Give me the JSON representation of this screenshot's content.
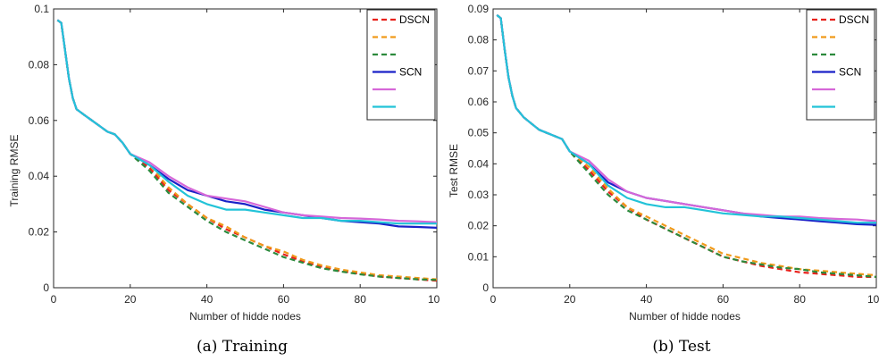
{
  "chart_data": [
    {
      "type": "line",
      "caption": "(a)  Training",
      "xlabel": "Number of hidde nodes",
      "ylabel": "Training RMSE",
      "xlim": [
        0,
        100
      ],
      "ylim": [
        0,
        0.1
      ],
      "xticks": [
        "0",
        "20",
        "40",
        "60",
        "80",
        "100"
      ],
      "yticks": [
        "0",
        "0.02",
        "0.04",
        "0.06",
        "0.08",
        "0.1"
      ],
      "grid": false,
      "legend_position": "top-right",
      "series": [
        {
          "name": "DSCN",
          "color": "#e8211b",
          "dashed": true,
          "x": [
            1,
            2,
            3,
            4,
            5,
            6,
            8,
            10,
            12,
            14,
            16,
            18,
            20,
            25,
            30,
            35,
            40,
            45,
            50,
            55,
            60,
            65,
            70,
            75,
            80,
            85,
            90,
            95,
            100
          ],
          "y": [
            0.096,
            0.095,
            0.085,
            0.075,
            0.068,
            0.064,
            0.062,
            0.06,
            0.058,
            0.056,
            0.055,
            0.052,
            0.048,
            0.043,
            0.035,
            0.03,
            0.025,
            0.021,
            0.018,
            0.015,
            0.012,
            0.0095,
            0.0075,
            0.006,
            0.005,
            0.004,
            0.0035,
            0.003,
            0.0025
          ]
        },
        {
          "name": "",
          "color": "#f09a1a",
          "dashed": true,
          "x": [
            1,
            2,
            3,
            4,
            5,
            6,
            8,
            10,
            12,
            14,
            16,
            18,
            20,
            25,
            30,
            35,
            40,
            45,
            50,
            55,
            60,
            65,
            70,
            75,
            80,
            85,
            90,
            95,
            100
          ],
          "y": [
            0.096,
            0.095,
            0.085,
            0.075,
            0.068,
            0.064,
            0.062,
            0.06,
            0.058,
            0.056,
            0.055,
            0.052,
            0.048,
            0.044,
            0.036,
            0.03,
            0.025,
            0.022,
            0.018,
            0.015,
            0.013,
            0.01,
            0.008,
            0.0065,
            0.0055,
            0.0045,
            0.004,
            0.0035,
            0.003
          ]
        },
        {
          "name": "",
          "color": "#2c8a3c",
          "dashed": true,
          "x": [
            1,
            2,
            3,
            4,
            5,
            6,
            8,
            10,
            12,
            14,
            16,
            18,
            20,
            25,
            30,
            35,
            40,
            45,
            50,
            55,
            60,
            65,
            70,
            75,
            80,
            85,
            90,
            95,
            100
          ],
          "y": [
            0.096,
            0.095,
            0.085,
            0.075,
            0.068,
            0.064,
            0.062,
            0.06,
            0.058,
            0.056,
            0.055,
            0.052,
            0.048,
            0.042,
            0.034,
            0.029,
            0.024,
            0.02,
            0.017,
            0.014,
            0.011,
            0.009,
            0.007,
            0.0058,
            0.0048,
            0.004,
            0.0035,
            0.003,
            0.0028
          ]
        },
        {
          "name": "SCN",
          "color": "#1a22c8",
          "dashed": false,
          "x": [
            1,
            2,
            3,
            4,
            5,
            6,
            8,
            10,
            12,
            14,
            16,
            18,
            20,
            25,
            30,
            35,
            40,
            45,
            50,
            55,
            60,
            65,
            70,
            75,
            80,
            85,
            90,
            95,
            100
          ],
          "y": [
            0.096,
            0.095,
            0.085,
            0.075,
            0.068,
            0.064,
            0.062,
            0.06,
            0.058,
            0.056,
            0.055,
            0.052,
            0.048,
            0.044,
            0.039,
            0.035,
            0.033,
            0.031,
            0.03,
            0.028,
            0.027,
            0.026,
            0.025,
            0.024,
            0.0235,
            0.023,
            0.022,
            0.0218,
            0.0215
          ]
        },
        {
          "name": "",
          "color": "#d667d8",
          "dashed": false,
          "x": [
            1,
            2,
            3,
            4,
            5,
            6,
            8,
            10,
            12,
            14,
            16,
            18,
            20,
            25,
            30,
            35,
            40,
            45,
            50,
            55,
            60,
            65,
            70,
            75,
            80,
            85,
            90,
            95,
            100
          ],
          "y": [
            0.096,
            0.095,
            0.085,
            0.075,
            0.068,
            0.064,
            0.062,
            0.06,
            0.058,
            0.056,
            0.055,
            0.052,
            0.048,
            0.045,
            0.04,
            0.036,
            0.033,
            0.032,
            0.031,
            0.029,
            0.027,
            0.026,
            0.0255,
            0.025,
            0.0248,
            0.0245,
            0.024,
            0.0238,
            0.0235
          ]
        },
        {
          "name": "",
          "color": "#22c3d8",
          "dashed": false,
          "x": [
            1,
            2,
            3,
            4,
            5,
            6,
            8,
            10,
            12,
            14,
            16,
            18,
            20,
            25,
            30,
            35,
            40,
            45,
            50,
            55,
            60,
            65,
            70,
            75,
            80,
            85,
            90,
            95,
            100
          ],
          "y": [
            0.096,
            0.095,
            0.085,
            0.075,
            0.068,
            0.064,
            0.062,
            0.06,
            0.058,
            0.056,
            0.055,
            0.052,
            0.048,
            0.044,
            0.038,
            0.033,
            0.03,
            0.028,
            0.028,
            0.027,
            0.026,
            0.025,
            0.025,
            0.024,
            0.024,
            0.0235,
            0.023,
            0.023,
            0.023
          ]
        }
      ]
    },
    {
      "type": "line",
      "caption": "(b)  Test",
      "xlabel": "Number of hidde nodes",
      "ylabel": "Test RMSE",
      "xlim": [
        0,
        100
      ],
      "ylim": [
        0,
        0.09
      ],
      "xticks": [
        "0",
        "20",
        "40",
        "60",
        "80",
        "100"
      ],
      "yticks": [
        "0",
        "0.01",
        "0.02",
        "0.03",
        "0.04",
        "0.05",
        "0.06",
        "0.07",
        "0.08",
        "0.09"
      ],
      "grid": false,
      "legend_position": "top-right",
      "series": [
        {
          "name": "DSCN",
          "color": "#e8211b",
          "dashed": true,
          "x": [
            1,
            2,
            3,
            4,
            5,
            6,
            8,
            10,
            12,
            14,
            16,
            18,
            20,
            25,
            30,
            35,
            40,
            45,
            50,
            55,
            60,
            65,
            70,
            75,
            80,
            85,
            90,
            95,
            100
          ],
          "y": [
            0.088,
            0.087,
            0.077,
            0.068,
            0.062,
            0.058,
            0.055,
            0.053,
            0.051,
            0.05,
            0.049,
            0.048,
            0.044,
            0.038,
            0.031,
            0.026,
            0.022,
            0.019,
            0.016,
            0.013,
            0.01,
            0.0085,
            0.007,
            0.006,
            0.005,
            0.0045,
            0.004,
            0.0035,
            0.0035
          ]
        },
        {
          "name": "",
          "color": "#f09a1a",
          "dashed": true,
          "x": [
            1,
            2,
            3,
            4,
            5,
            6,
            8,
            10,
            12,
            14,
            16,
            18,
            20,
            25,
            30,
            35,
            40,
            45,
            50,
            55,
            60,
            65,
            70,
            75,
            80,
            85,
            90,
            95,
            100
          ],
          "y": [
            0.088,
            0.087,
            0.077,
            0.068,
            0.062,
            0.058,
            0.055,
            0.053,
            0.051,
            0.05,
            0.049,
            0.048,
            0.044,
            0.039,
            0.032,
            0.026,
            0.023,
            0.02,
            0.017,
            0.014,
            0.011,
            0.0095,
            0.008,
            0.007,
            0.006,
            0.0055,
            0.005,
            0.0045,
            0.004
          ]
        },
        {
          "name": "",
          "color": "#2c8a3c",
          "dashed": true,
          "x": [
            1,
            2,
            3,
            4,
            5,
            6,
            8,
            10,
            12,
            14,
            16,
            18,
            20,
            25,
            30,
            35,
            40,
            45,
            50,
            55,
            60,
            65,
            70,
            75,
            80,
            85,
            90,
            95,
            100
          ],
          "y": [
            0.088,
            0.087,
            0.077,
            0.068,
            0.062,
            0.058,
            0.055,
            0.053,
            0.051,
            0.05,
            0.049,
            0.048,
            0.044,
            0.037,
            0.03,
            0.025,
            0.022,
            0.019,
            0.016,
            0.013,
            0.01,
            0.0085,
            0.0075,
            0.0065,
            0.006,
            0.005,
            0.0045,
            0.004,
            0.0035
          ]
        },
        {
          "name": "SCN",
          "color": "#1a22c8",
          "dashed": false,
          "x": [
            1,
            2,
            3,
            4,
            5,
            6,
            8,
            10,
            12,
            14,
            16,
            18,
            20,
            25,
            30,
            35,
            40,
            45,
            50,
            55,
            60,
            65,
            70,
            75,
            80,
            85,
            90,
            95,
            100
          ],
          "y": [
            0.088,
            0.087,
            0.077,
            0.068,
            0.062,
            0.058,
            0.055,
            0.053,
            0.051,
            0.05,
            0.049,
            0.048,
            0.044,
            0.04,
            0.034,
            0.031,
            0.029,
            0.028,
            0.027,
            0.026,
            0.025,
            0.024,
            0.023,
            0.0225,
            0.022,
            0.0215,
            0.021,
            0.0205,
            0.0203
          ]
        },
        {
          "name": "",
          "color": "#d667d8",
          "dashed": false,
          "x": [
            1,
            2,
            3,
            4,
            5,
            6,
            8,
            10,
            12,
            14,
            16,
            18,
            20,
            25,
            30,
            35,
            40,
            45,
            50,
            55,
            60,
            65,
            70,
            75,
            80,
            85,
            90,
            95,
            100
          ],
          "y": [
            0.088,
            0.087,
            0.077,
            0.068,
            0.062,
            0.058,
            0.055,
            0.053,
            0.051,
            0.05,
            0.049,
            0.048,
            0.044,
            0.041,
            0.035,
            0.031,
            0.029,
            0.028,
            0.027,
            0.026,
            0.025,
            0.024,
            0.0235,
            0.023,
            0.023,
            0.0225,
            0.0222,
            0.022,
            0.0215
          ]
        },
        {
          "name": "",
          "color": "#22c3d8",
          "dashed": false,
          "x": [
            1,
            2,
            3,
            4,
            5,
            6,
            8,
            10,
            12,
            14,
            16,
            18,
            20,
            25,
            30,
            35,
            40,
            45,
            50,
            55,
            60,
            65,
            70,
            75,
            80,
            85,
            90,
            95,
            100
          ],
          "y": [
            0.088,
            0.087,
            0.077,
            0.068,
            0.062,
            0.058,
            0.055,
            0.053,
            0.051,
            0.05,
            0.049,
            0.048,
            0.044,
            0.04,
            0.033,
            0.029,
            0.027,
            0.026,
            0.026,
            0.025,
            0.024,
            0.0235,
            0.023,
            0.023,
            0.0225,
            0.022,
            0.0215,
            0.021,
            0.021
          ]
        }
      ]
    }
  ]
}
